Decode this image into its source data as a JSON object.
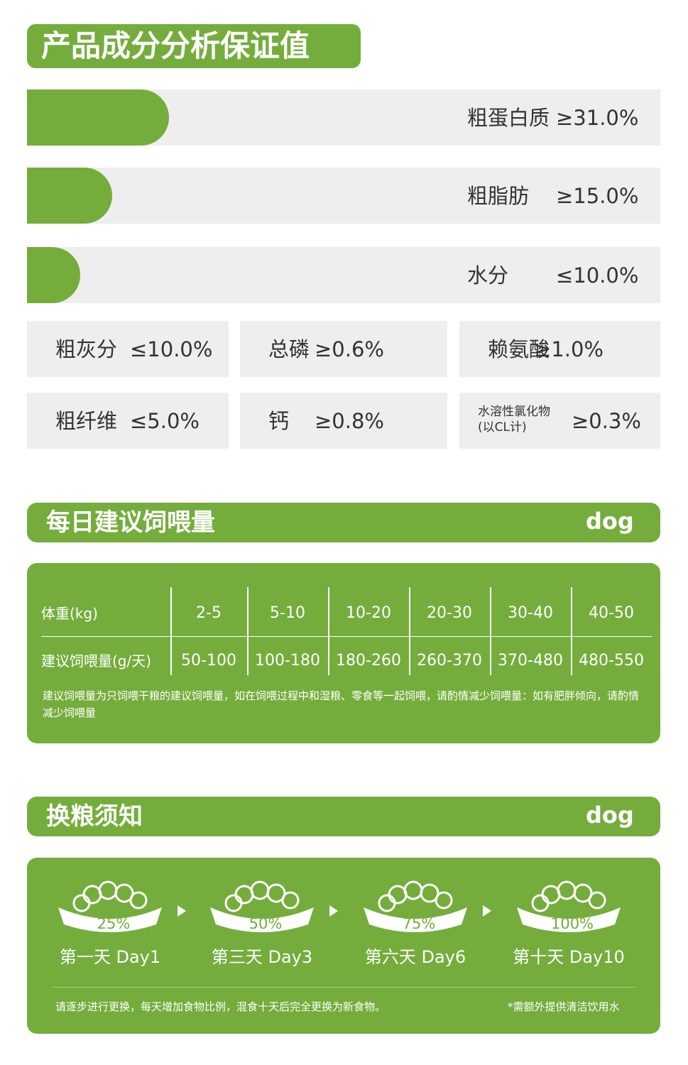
{
  "section1": {
    "title": "产品成分分析保证值",
    "bars": [
      {
        "label": "粗蛋白质",
        "value": "≥31.0%"
      },
      {
        "label": "粗脂肪",
        "value": "≥15.0%"
      },
      {
        "label": "水分",
        "value": "≤10.0%"
      }
    ],
    "boxes": [
      {
        "label": "粗灰分",
        "value": "≤10.0%"
      },
      {
        "label": "总磷",
        "value": "≥0.6%"
      },
      {
        "label": "赖氨酸",
        "value": "≥1.0%"
      },
      {
        "label": "粗纤维",
        "value": "≤5.0%"
      },
      {
        "label": "钙",
        "value": "≥0.8%"
      },
      {
        "label": "水溶性氯化物",
        "sublabel": "(以CL计)",
        "value": "≥0.3%"
      }
    ]
  },
  "section2": {
    "title": "每日建议饲喂量",
    "tag": "dog",
    "table": {
      "rows": [
        [
          "体重(kg)",
          "2-5",
          "5-10",
          "10-20",
          "20-30",
          "30-40",
          "40-50"
        ],
        [
          "建议饲喂量(g/天)",
          "50-100",
          "100-180",
          "180-260",
          "260-370",
          "370-480",
          "480-550"
        ]
      ]
    },
    "note": "建议饲喂量为只饲喂干粮的建议饲喂量，如在饲喂过程中和湿粮、零食等一起饲喂，请酌情减少饲喂量：如有肥胖倾向，请酌情减少饲喂量"
  },
  "section3": {
    "title": "换粮须知",
    "tag": "dog",
    "steps": [
      {
        "percent": "25%",
        "label": "第一天 Day1"
      },
      {
        "percent": "50%",
        "label": "第三天 Day3"
      },
      {
        "percent": "75%",
        "label": "第六天 Day6"
      },
      {
        "percent": "100%",
        "label": "第十天 Day10"
      }
    ],
    "note": "请逐步进行更换，每天增加食物比例，混食十天后完全更换为新食物。",
    "note_right": "*需额外提供清洁饮用水"
  }
}
